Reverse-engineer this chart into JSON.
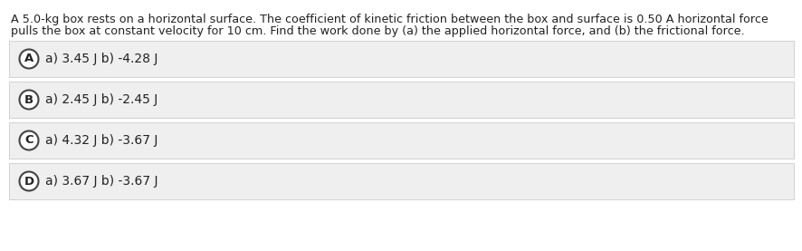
{
  "question_text_line1": "A 5.0-kg box rests on a horizontal surface. The coefficient of kinetic friction between the box and surface is 0.50 A horizontal force",
  "question_text_line2": "pulls the box at constant velocity for 10 cm. Find the work done by (a) the applied horizontal force, and (b) the frictional force.",
  "options": [
    {
      "label": "A",
      "text": "a) 3.45 J b) -4.28 J"
    },
    {
      "label": "B",
      "text": "a) 2.45 J b) -2.45 J"
    },
    {
      "label": "C",
      "text": "a) 4.32 J b) -3.67 J"
    },
    {
      "label": "D",
      "text": "a) 3.67 J b) -3.67 J"
    }
  ],
  "background_color": "#ffffff",
  "option_bg_color": "#efefef",
  "option_border_color": "#cccccc",
  "circle_edge_color": "#444444",
  "circle_face_color": "#ffffff",
  "text_color": "#222222",
  "label_color": "#222222",
  "question_fontsize": 9.2,
  "option_fontsize": 10.0,
  "label_fontsize": 9.5
}
